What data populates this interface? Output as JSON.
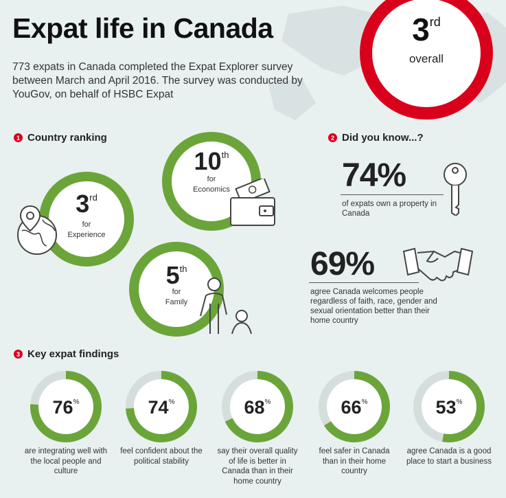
{
  "title": "Expat life in Canada",
  "intro": "773 expats in Canada completed the Expat Explorer survey between March and April 2016. The survey was conducted by YouGov, on behalf of HSBC Expat",
  "overall": {
    "rank": "3",
    "suffix": "rd",
    "label": "overall"
  },
  "section1": {
    "num": "1",
    "label": "Country ranking"
  },
  "section2": {
    "num": "2",
    "label": "Did you know...?"
  },
  "section3": {
    "num": "3",
    "label": "Key expat findings"
  },
  "rankings": [
    {
      "rank": "10",
      "suffix": "th",
      "for": "for",
      "label": "Economics",
      "icon": "wallet-icon"
    },
    {
      "rank": "3",
      "suffix": "rd",
      "for": "for",
      "label": "Experience",
      "icon": "globe-pin-icon"
    },
    {
      "rank": "5",
      "suffix": "th",
      "for": "for",
      "label": "Family",
      "icon": "family-icon"
    }
  ],
  "facts": [
    {
      "value": "74%",
      "text": "of expats own a property in Canada",
      "icon": "key-icon"
    },
    {
      "value": "69%",
      "text": "agree Canada welcomes people regardless of faith, race, gender and sexual orientation better than their home country",
      "icon": "handshake-icon"
    }
  ],
  "findings": [
    {
      "value": 76,
      "pct": "76",
      "sym": "%",
      "caption": "are integrating well with the local people and culture"
    },
    {
      "value": 74,
      "pct": "74",
      "sym": "%",
      "caption": "feel confident about the political stability"
    },
    {
      "value": 68,
      "pct": "68",
      "sym": "%",
      "caption": "say their overall quality of life is better in Canada than in their home country"
    },
    {
      "value": 66,
      "pct": "66",
      "sym": "%",
      "caption": "feel safer in Canada than in their home country"
    },
    {
      "value": 53,
      "pct": "53",
      "sym": "%",
      "caption": "agree Canada is a good place to start a business"
    }
  ],
  "colors": {
    "red": "#d9001b",
    "green": "#6ba539",
    "track": "#d5dedd",
    "background": "#e9f0f0"
  }
}
